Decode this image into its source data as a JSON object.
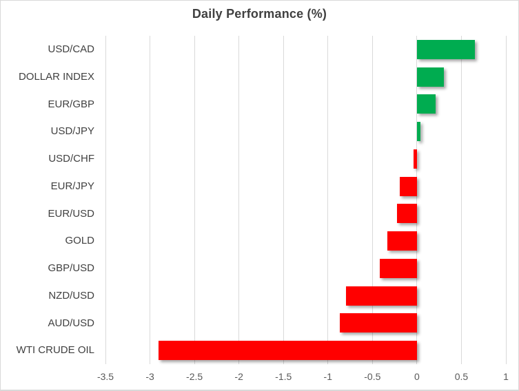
{
  "chart_data": {
    "type": "bar",
    "orientation": "horizontal",
    "title": "Daily Performance (%)",
    "categories": [
      "USD/CAD",
      "DOLLAR INDEX",
      "EUR/GBP",
      "USD/JPY",
      "USD/CHF",
      "EUR/JPY",
      "EUR/USD",
      "GOLD",
      "GBP/USD",
      "NZD/USD",
      "AUD/USD",
      "WTI CRUDE OIL"
    ],
    "values": [
      0.65,
      0.3,
      0.21,
      0.04,
      -0.04,
      -0.19,
      -0.22,
      -0.33,
      -0.42,
      -0.8,
      -0.87,
      -2.9
    ],
    "xlabel": "",
    "ylabel": "",
    "xlim": [
      -3.5,
      1
    ],
    "x_ticks": [
      -3.5,
      -3,
      -2.5,
      -2,
      -1.5,
      -1,
      -0.5,
      0,
      0.5,
      1
    ],
    "x_tick_labels": [
      "-3.5",
      "-3",
      "-2.5",
      "-2",
      "-1.5",
      "-1",
      "-0.5",
      "0",
      "0.5",
      "1"
    ],
    "grid": "vertical",
    "legend": "none",
    "colors": {
      "positive": "#00AC50",
      "negative": "#FF0000",
      "gridline": "#D9D9D9",
      "title": "#404040",
      "category_label": "#404040",
      "tick_label": "#595959",
      "background": "#FFFFFF",
      "border": "#D9D9D9"
    }
  }
}
